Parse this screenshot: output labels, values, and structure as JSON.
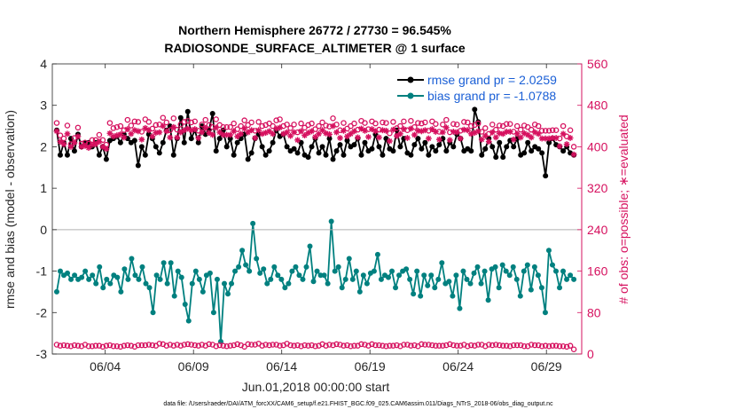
{
  "chart_data": {
    "type": "line",
    "title": "Northern Hemisphere 26772 / 27730 = 96.545%",
    "subtitle": "RADIOSONDE_SURFACE_ALTIMETER @ 1 surface",
    "xlabel": "Jun.01,2018 00:00:00 start",
    "ylabel_left": "rmse and bias (model - observation)",
    "ylabel_right": "# of obs: o=possible; ∗=evaluated",
    "footnote": "data file: /Users/raeder/DAI/ATM_forcXX/CAM6_setup/f.e21.FHIST_BGC.f09_025.CAM6assim.011/Diags_NTrS_2018-06/obs_diag_output.nc",
    "x_ticks": [
      "06/04",
      "06/09",
      "06/14",
      "06/19",
      "06/24",
      "06/29"
    ],
    "x_tick_days": [
      4,
      9,
      14,
      19,
      24,
      29
    ],
    "xlim": [
      1,
      31
    ],
    "ylim_left": [
      -3,
      4
    ],
    "y_ticks_left": [
      "-3",
      "-2",
      "-1",
      "0",
      "1",
      "2",
      "3",
      "4"
    ],
    "ylim_right": [
      0,
      560
    ],
    "y_ticks_right": [
      "0",
      "80",
      "160",
      "240",
      "320",
      "400",
      "480",
      "560"
    ],
    "zero_line": 0,
    "grid": false,
    "legend_position": "top-right",
    "series": [
      {
        "name": "rmse grand pr = 2.0259",
        "color": "#000000",
        "marker": "circle-filled",
        "axis": "left",
        "values": [
          2.4,
          1.8,
          2.1,
          1.8,
          2.2,
          1.9,
          2.3,
          2.0,
          2.1,
          2.1,
          2.0,
          2.1,
          1.8,
          2.0,
          1.7,
          2.15,
          2.2,
          2.25,
          2.1,
          2.3,
          2.2,
          2.1,
          2.15,
          1.55,
          2.0,
          1.8,
          2.3,
          2.2,
          2.0,
          1.85,
          2.1,
          2.4,
          2.5,
          1.8,
          2.2,
          2.7,
          2.1,
          2.85,
          2.2,
          2.4,
          2.1,
          2.5,
          2.3,
          2.4,
          2.8,
          1.9,
          2.2,
          2.4,
          2.0,
          2.2,
          1.8,
          2.1,
          2.2,
          2.3,
          1.7,
          1.85,
          2.2,
          2.3,
          2.0,
          1.8,
          1.9,
          2.1,
          2.4,
          2.25,
          2.3,
          2.0,
          1.9,
          1.95,
          1.85,
          2.1,
          1.8,
          1.75,
          2.0,
          2.2,
          1.85,
          2.0,
          1.8,
          2.2,
          1.7,
          1.9,
          2.05,
          1.8,
          2.15,
          2.0,
          2.05,
          2.2,
          1.8,
          2.1,
          1.9,
          1.95,
          2.3,
          2.0,
          1.8,
          2.2,
          1.95,
          1.9,
          2.4,
          2.0,
          2.2,
          1.85,
          1.8,
          2.05,
          2.2,
          1.95,
          2.1,
          1.8,
          2.0,
          1.9,
          2.05,
          2.2,
          1.9,
          2.1,
          2.0,
          2.3,
          2.2,
          1.9,
          1.95,
          1.9,
          2.9,
          2.6,
          1.8,
          1.95,
          2.2,
          2.0,
          1.75,
          2.1,
          1.75,
          2.0,
          2.15,
          2.0,
          2.2,
          1.8,
          1.85,
          2.1,
          1.9,
          2.0,
          1.95,
          1.85,
          1.3,
          2.1,
          2.2,
          2.05,
          2.0,
          1.9,
          2.0,
          1.85,
          1.8
        ]
      },
      {
        "name": "bias grand pr = -1.0788",
        "color": "#00807f",
        "marker": "circle-filled",
        "axis": "left",
        "values": [
          -1.5,
          -1.0,
          -1.1,
          -1.05,
          -1.2,
          -1.1,
          -1.2,
          -1.15,
          -1.0,
          -1.2,
          -1.1,
          -1.3,
          -0.9,
          -1.4,
          -1.2,
          -1.3,
          -1.1,
          -1.15,
          -1.5,
          -0.95,
          -1.2,
          -0.7,
          -1.1,
          -1.2,
          -0.9,
          -1.3,
          -1.4,
          -2.0,
          -1.1,
          -1.2,
          -0.8,
          -1.3,
          -0.8,
          -1.6,
          -1.0,
          -1.15,
          -1.8,
          -2.2,
          -1.3,
          -1.0,
          -1.2,
          -1.5,
          -1.1,
          -1.05,
          -2.0,
          -1.2,
          -2.7,
          -1.3,
          -1.55,
          -1.3,
          -1.0,
          -0.9,
          -0.5,
          -0.85,
          -1.0,
          0.15,
          -0.7,
          -1.05,
          -0.95,
          -1.3,
          -1.2,
          -0.9,
          -1.1,
          -1.2,
          -1.4,
          -1.3,
          -1.0,
          -0.9,
          -1.1,
          -1.2,
          -0.9,
          -0.4,
          -1.25,
          -1.0,
          -1.1,
          -1.1,
          -1.3,
          0.2,
          -1.0,
          -0.9,
          -1.4,
          -1.2,
          -0.7,
          -1.2,
          -1.0,
          -1.5,
          -1.1,
          -1.3,
          -1.05,
          -1.0,
          -0.6,
          -1.2,
          -1.1,
          -1.15,
          -1.0,
          -1.4,
          -1.1,
          -1.0,
          -0.95,
          -1.2,
          -1.55,
          -1.0,
          -1.6,
          -1.1,
          -1.35,
          -1.1,
          -1.4,
          -1.2,
          -0.8,
          -1.3,
          -1.25,
          -1.6,
          -1.1,
          -1.9,
          -1.0,
          -1.2,
          -1.3,
          -1.05,
          -0.9,
          -1.3,
          -1.0,
          -1.7,
          -0.95,
          -0.9,
          -1.4,
          -0.85,
          -1.0,
          -1.1,
          -0.9,
          -1.2,
          -1.6,
          -1.0,
          -0.85,
          -1.45,
          -0.9,
          -1.1,
          -1.4,
          -2.0,
          -0.5,
          -0.85,
          -1.0,
          -1.4,
          -1.0,
          -1.2,
          -1.1,
          -1.2
        ]
      },
      {
        "name": "possible",
        "color": "#d6115f",
        "marker": "circle-open",
        "axis": "right",
        "values": [
          446,
          422,
          416,
          441,
          405,
          417,
          437,
          406,
          408,
          406,
          413,
          413,
          423,
          413,
          404,
          446,
          436,
          438,
          440,
          432,
          452,
          441,
          449,
          448,
          429,
          453,
          448,
          435,
          442,
          443,
          456,
          447,
          432,
          455,
          433,
          443,
          448,
          450,
          447,
          449,
          431,
          443,
          452,
          442,
          438,
          453,
          442,
          438,
          438,
          438,
          445,
          434,
          440,
          451,
          442,
          447,
          431,
          448,
          440,
          442,
          445,
          440,
          451,
          453,
          440,
          443,
          436,
          443,
          428,
          445,
          437,
          442,
          445,
          434,
          440,
          447,
          441,
          439,
          455,
          443,
          432,
          446,
          435,
          440,
          445,
          433,
          450,
          446,
          434,
          449,
          445,
          433,
          447,
          446,
          426,
          448,
          436,
          440,
          449,
          432,
          450,
          438,
          446,
          445,
          447,
          431,
          449,
          444,
          429,
          443,
          452,
          428,
          444,
          443,
          431,
          448,
          447,
          440,
          442,
          445,
          429,
          436,
          425,
          443,
          433,
          441,
          440,
          444,
          444,
          429,
          440,
          433,
          441,
          438,
          433,
          443,
          440,
          431,
          431,
          431,
          432,
          432,
          416,
          440,
          420,
          432,
          400
        ]
      },
      {
        "name": "evaluated",
        "color": "#d6115f",
        "marker": "asterisk",
        "axis": "right",
        "values": [
          430,
          410,
          405,
          425,
          400,
          408,
          420,
          400,
          402,
          398,
          404,
          405,
          410,
          400,
          396,
          426,
          420,
          422,
          424,
          418,
          434,
          425,
          432,
          430,
          414,
          436,
          432,
          420,
          427,
          428,
          440,
          430,
          418,
          438,
          418,
          428,
          432,
          435,
          432,
          434,
          417,
          428,
          436,
          427,
          423,
          437,
          428,
          423,
          423,
          423,
          430,
          420,
          425,
          435,
          428,
          432,
          417,
          432,
          425,
          427,
          430,
          425,
          435,
          437,
          425,
          428,
          421,
          428,
          413,
          430,
          422,
          427,
          430,
          419,
          425,
          432,
          426,
          424,
          440,
          428,
          417,
          431,
          420,
          425,
          430,
          418,
          435,
          431,
          419,
          434,
          430,
          418,
          432,
          431,
          411,
          433,
          421,
          425,
          434,
          417,
          435,
          423,
          431,
          430,
          432,
          416,
          434,
          429,
          414,
          428,
          437,
          413,
          429,
          428,
          416,
          433,
          432,
          425,
          427,
          430,
          414,
          421,
          410,
          428,
          418,
          426,
          425,
          429,
          429,
          414,
          425,
          418,
          426,
          423,
          418,
          428,
          425,
          416,
          416,
          416,
          417,
          417,
          401,
          425,
          405,
          417,
          385
        ]
      },
      {
        "name": "bottom possible",
        "color": "#d6115f",
        "marker": "circle-open",
        "axis": "right",
        "values": [
          18,
          16,
          17,
          16,
          15,
          17,
          16,
          15,
          18,
          15,
          15,
          16,
          16,
          14,
          16,
          17,
          15,
          15,
          14,
          16,
          17,
          16,
          14,
          17,
          17,
          17,
          18,
          17,
          16,
          20,
          19,
          16,
          18,
          16,
          18,
          16,
          18,
          19,
          18,
          17,
          16,
          18,
          16,
          19,
          18,
          15,
          17,
          16,
          15,
          16,
          17,
          19,
          17,
          14,
          19,
          18,
          18,
          20,
          16,
          18,
          17,
          18,
          18,
          16,
          17,
          20,
          17,
          16,
          17,
          15,
          17,
          16,
          17,
          15,
          16,
          19,
          16,
          18,
          17,
          19,
          18,
          16,
          17,
          15,
          16,
          16,
          19,
          18,
          16,
          19,
          17,
          17,
          16,
          15,
          16,
          16,
          17,
          15,
          18,
          18,
          16,
          17,
          15,
          19,
          18,
          18,
          17,
          16,
          16,
          16,
          17,
          19,
          17,
          16,
          16,
          18,
          15,
          17,
          16,
          18,
          18,
          15,
          18,
          17,
          18,
          17,
          16,
          16,
          15,
          17,
          17,
          17,
          15,
          15,
          18,
          17,
          17,
          15,
          16,
          15,
          16,
          16,
          15,
          15,
          14,
          16,
          9
        ]
      }
    ]
  }
}
